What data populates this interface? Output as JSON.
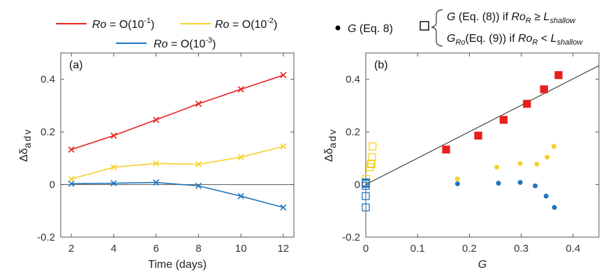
{
  "colors": {
    "red": "#e8201c",
    "yellow": "#f5d22a",
    "blue": "#1f75c0",
    "black": "#000000"
  },
  "legend_left": [
    {
      "color": "#e8201c",
      "ital": "Ro",
      "rest": " = O(10",
      "exp": "-1",
      "close": ")"
    },
    {
      "color": "#f5d22a",
      "ital": "Ro",
      "rest": " = O(10",
      "exp": "-2",
      "close": ")"
    },
    {
      "color": "#1f75c0",
      "ital": "Ro",
      "rest": " = O(10",
      "exp": "-3",
      "close": ")"
    }
  ],
  "legend_right": {
    "dot_label_ital": "G",
    "dot_label_rest": " (Eq. 8)",
    "line1": {
      "a_ital": "G",
      "b": " (Eq. (8)) if ",
      "c_ital": "Ro",
      "c_sub": "R",
      "d": " ≥ ",
      "e_ital": "L",
      "e_sub": "shallow"
    },
    "line2": {
      "a_ital": "G",
      "a_sub": "Ro",
      "b": "(Eq. (9)) if ",
      "c_ital": "Ro",
      "c_sub": "R",
      "d": " < ",
      "e_ital": "L",
      "e_sub": "shallow"
    }
  },
  "chart_data": [
    {
      "type": "line",
      "panel_label": "(a)",
      "xlabel": "Time (days)",
      "ylabel": "Δδ",
      "ylabel_sub": "adv",
      "xlim": [
        1.5,
        12.5
      ],
      "ylim": [
        -0.2,
        0.5
      ],
      "xticks": [
        2,
        4,
        6,
        8,
        10,
        12
      ],
      "yticks": [
        -0.2,
        0,
        0.2,
        0.4
      ],
      "ytick_labels": [
        "-0.2",
        "0",
        "0.2",
        "0.4"
      ],
      "zero_line": true,
      "x": [
        2,
        4,
        6,
        8,
        10,
        12
      ],
      "series": [
        {
          "name": "Ro = O(10-1)",
          "color": "#e8201c",
          "marker": "x",
          "values": [
            0.133,
            0.186,
            0.246,
            0.307,
            0.362,
            0.416
          ]
        },
        {
          "name": "Ro = O(10-2)",
          "color": "#f5d22a",
          "marker": "x",
          "values": [
            0.021,
            0.066,
            0.08,
            0.077,
            0.104,
            0.145
          ]
        },
        {
          "name": "Ro = O(10-3)",
          "color": "#1f75c0",
          "marker": "x",
          "values": [
            0.003,
            0.005,
            0.008,
            -0.005,
            -0.044,
            -0.087
          ]
        }
      ]
    },
    {
      "type": "scatter",
      "panel_label": "(b)",
      "xlabel": "G",
      "ylabel": "Δδ",
      "ylabel_sub": "adv",
      "xlim": [
        0,
        0.45
      ],
      "ylim": [
        -0.2,
        0.5
      ],
      "xticks": [
        0,
        0.1,
        0.2,
        0.3,
        0.4
      ],
      "xtick_labels": [
        "0",
        "0.1",
        "0.2",
        "0.3",
        "0.4"
      ],
      "yticks": [
        -0.2,
        0,
        0.2,
        0.4
      ],
      "ytick_labels": [
        "-0.2",
        "0",
        "0.2",
        "0.4"
      ],
      "fit_line": {
        "x": [
          0,
          0.45
        ],
        "y": [
          0.0,
          0.452
        ]
      },
      "dots": [
        {
          "color": "#e8201c",
          "x": [
            0.155,
            0.217,
            0.266,
            0.311,
            0.344,
            0.372
          ],
          "y": [
            0.133,
            0.186,
            0.246,
            0.307,
            0.362,
            0.416
          ]
        },
        {
          "color": "#f5d22a",
          "x": [
            0.177,
            0.253,
            0.298,
            0.33,
            0.35,
            0.363
          ],
          "y": [
            0.021,
            0.066,
            0.08,
            0.077,
            0.104,
            0.145
          ]
        },
        {
          "color": "#1f75c0",
          "x": [
            0.177,
            0.256,
            0.298,
            0.327,
            0.348,
            0.364
          ],
          "y": [
            0.003,
            0.005,
            0.008,
            -0.005,
            -0.044,
            -0.087
          ]
        }
      ],
      "squares": [
        {
          "color": "#e8201c",
          "filled": true,
          "x": [
            0.155,
            0.217,
            0.266,
            0.311,
            0.344,
            0.372
          ],
          "y": [
            0.133,
            0.186,
            0.246,
            0.307,
            0.362,
            0.416
          ]
        },
        {
          "color": "#f5d22a",
          "filled": false,
          "x": [
            0.001,
            0.008,
            0.01,
            0.011,
            0.012,
            0.013
          ],
          "y": [
            0.021,
            0.066,
            0.08,
            0.077,
            0.104,
            0.145
          ]
        },
        {
          "color": "#1f75c0",
          "filled": false,
          "x": [
            0.0,
            0.0,
            0.0,
            0.0,
            0.0,
            0.0
          ],
          "y": [
            0.003,
            0.005,
            0.008,
            -0.005,
            -0.044,
            -0.087
          ]
        }
      ]
    }
  ]
}
